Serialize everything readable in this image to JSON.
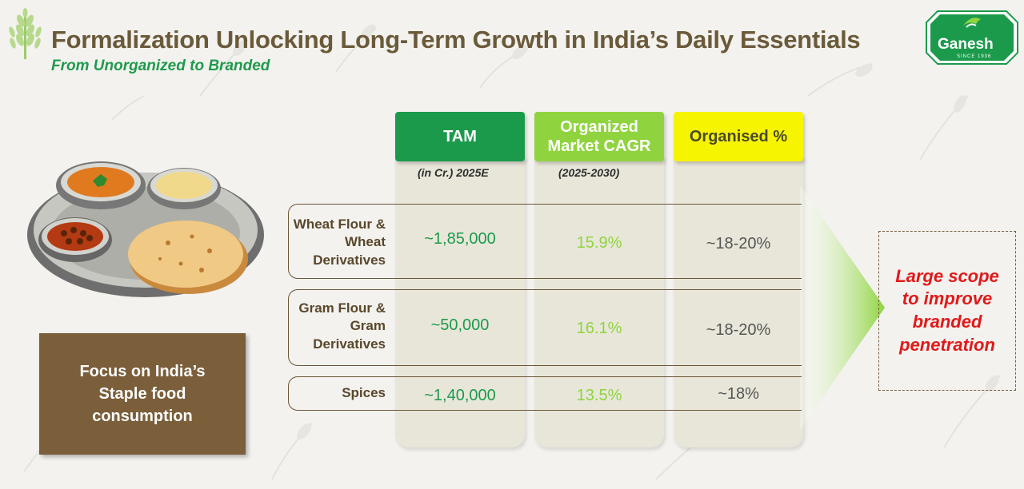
{
  "header": {
    "title": "Formalization Unlocking Long-Term Growth in India’s Daily Essentials",
    "subtitle": "From Unorganized to Branded"
  },
  "logo": {
    "brand": "Ganesh",
    "tagline": "SINCE 1936"
  },
  "focus_box": {
    "text": "Focus on India’s Staple food consumption"
  },
  "table": {
    "columns": [
      {
        "header": "TAM",
        "note": "(in Cr.) 2025E",
        "color": "#1c9a4c"
      },
      {
        "header": "Organized Market CAGR",
        "note": "(2025-2030)",
        "color": "#8fd43f"
      },
      {
        "header": "Organised %",
        "note": "",
        "color": "#f7f400"
      }
    ],
    "rows": [
      {
        "label": "Wheat Flour & Wheat Derivatives",
        "tam": "~1,85,000",
        "cagr": "15.9%",
        "organised": "~18-20%"
      },
      {
        "label": "Gram Flour & Gram Derivatives",
        "tam": "~50,000",
        "cagr": "16.1%",
        "organised": "~18-20%"
      },
      {
        "label": "Spices",
        "tam": "~1,40,000",
        "cagr": "13.5%",
        "organised": "~18%"
      }
    ]
  },
  "callout": {
    "text": "Large scope to improve branded penetration",
    "color": "#e11919"
  },
  "icons": [
    "wheat-icon",
    "ganesh-logo",
    "food-plate-illustration",
    "right-arrow-icon"
  ]
}
